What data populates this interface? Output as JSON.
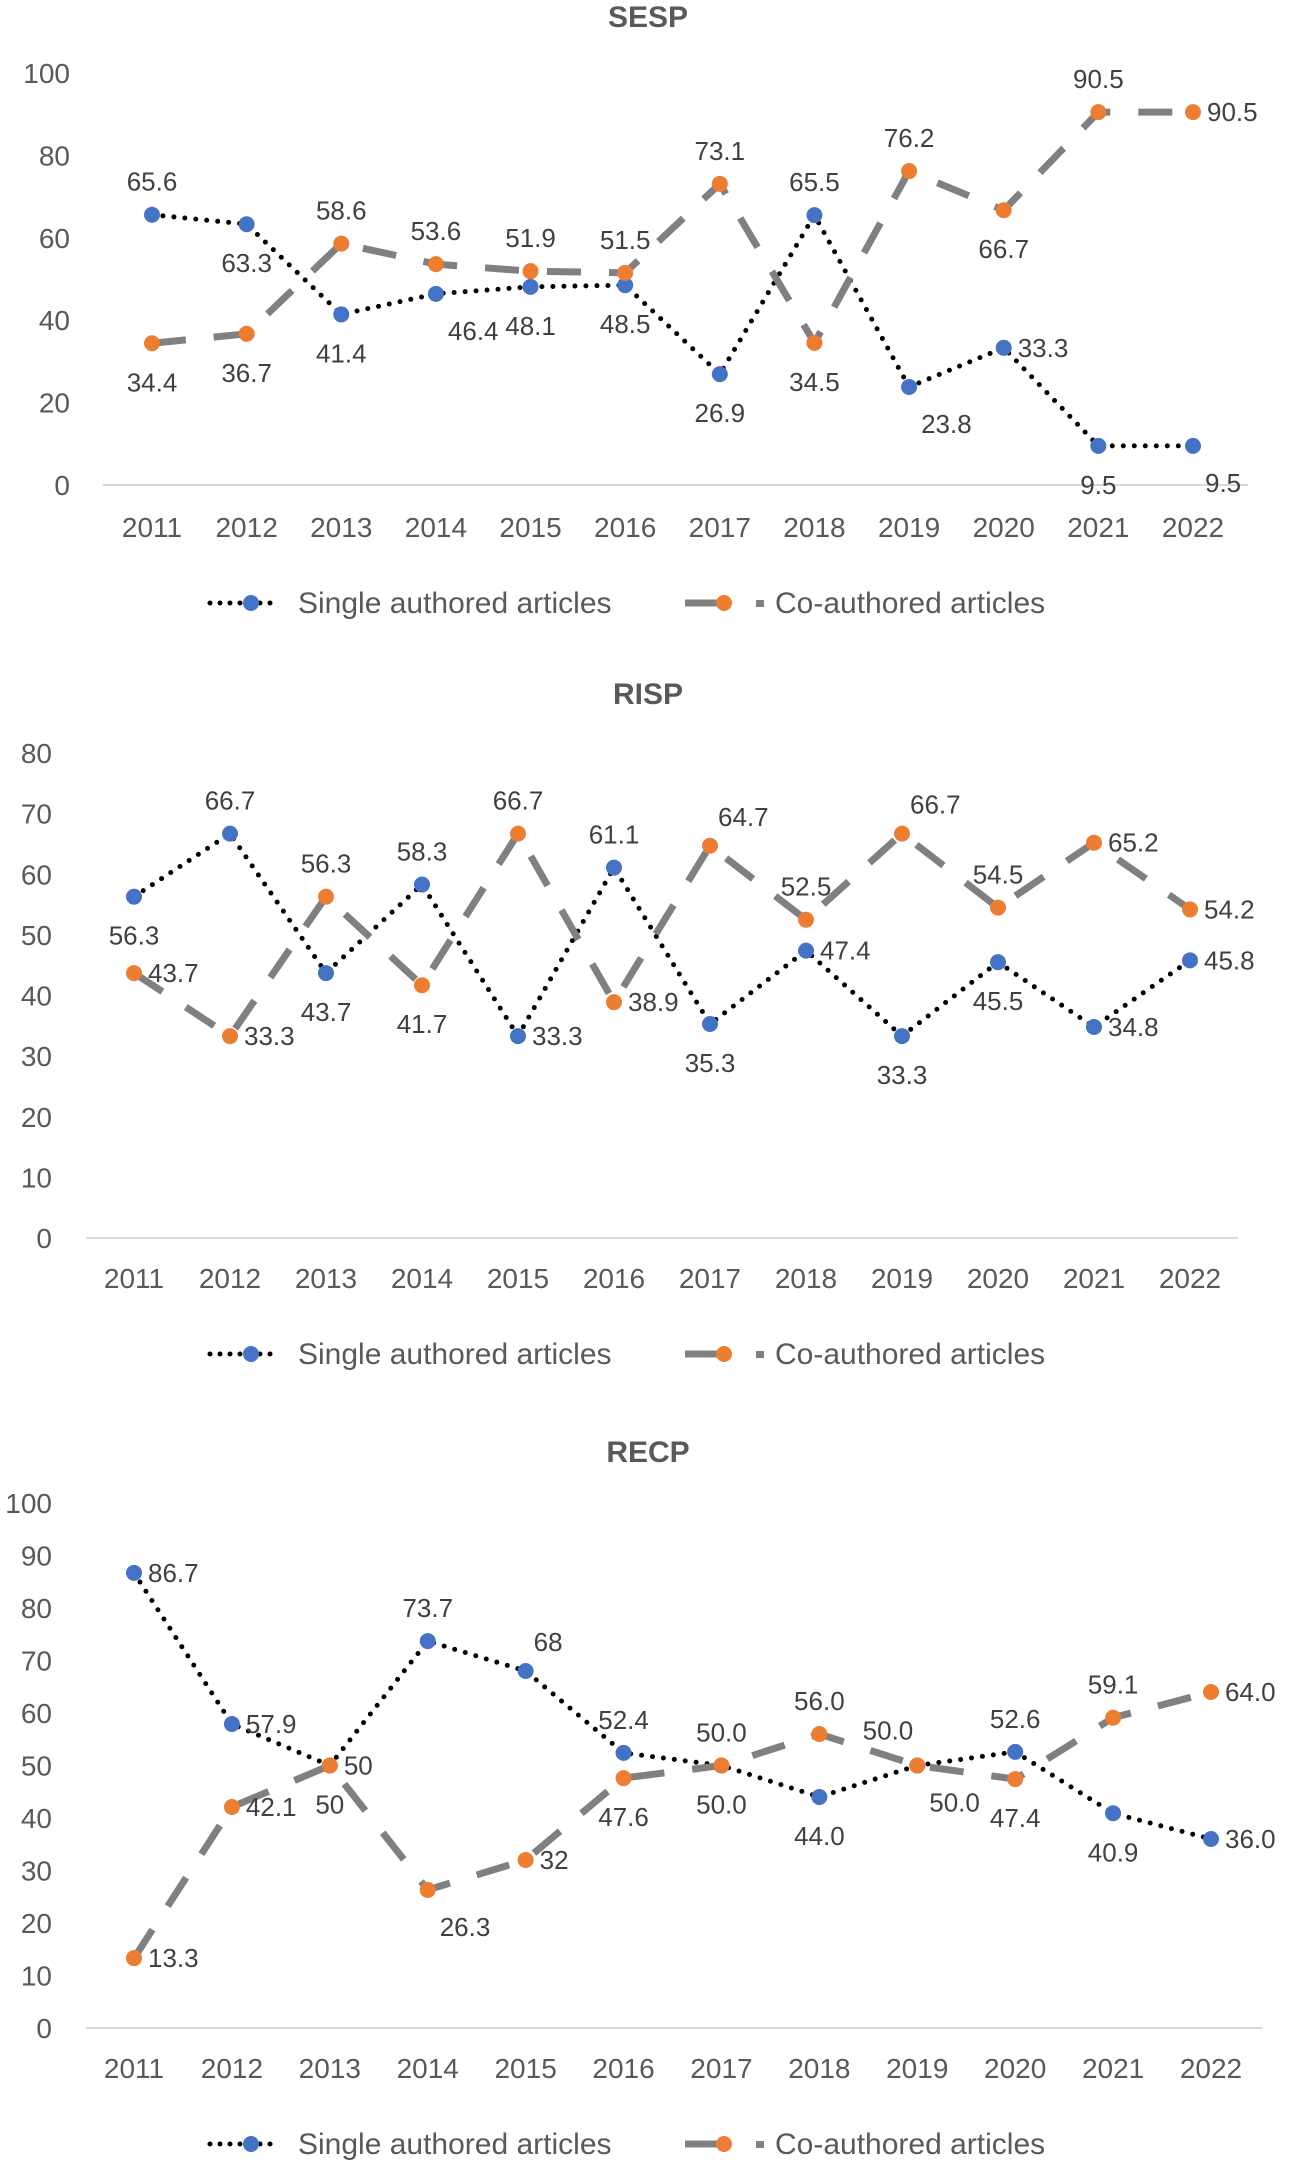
{
  "colors": {
    "single_marker": "#4472C4",
    "co_marker": "#ED7D31",
    "single_line": "#000000",
    "co_line": "#808080"
  },
  "chart_data": [
    {
      "type": "line",
      "title": "SESP",
      "categories": [
        "2011",
        "2012",
        "2013",
        "2014",
        "2015",
        "2016",
        "2017",
        "2018",
        "2019",
        "2020",
        "2021",
        "2022"
      ],
      "ylim": [
        0,
        100
      ],
      "yticks": [
        0,
        20,
        40,
        60,
        80,
        100
      ],
      "grid": false,
      "legend": "bottom",
      "series": [
        {
          "name": "Single authored articles",
          "values": [
            65.6,
            63.3,
            41.4,
            46.4,
            48.1,
            48.5,
            26.9,
            65.5,
            23.8,
            33.3,
            9.5,
            9.5
          ],
          "labels": [
            "65.6",
            "63.3",
            "41.4",
            "46.4",
            "48.1",
            "48.5",
            "26.9",
            "65.5",
            "23.8",
            "33.3",
            "9.5",
            "9.5"
          ]
        },
        {
          "name": "Co-authored articles",
          "values": [
            34.4,
            36.7,
            58.6,
            53.6,
            51.9,
            51.5,
            73.1,
            34.5,
            76.2,
            66.7,
            90.5,
            90.5
          ],
          "labels": [
            "34.4",
            "36.7",
            "58.6",
            "53.6",
            "51.9",
            "51.5",
            "73.1",
            "34.5",
            "76.2",
            "66.7",
            "90.5",
            "90.5"
          ]
        }
      ]
    },
    {
      "type": "line",
      "title": "RISP",
      "categories": [
        "2011",
        "2012",
        "2013",
        "2014",
        "2015",
        "2016",
        "2017",
        "2018",
        "2019",
        "2020",
        "2021",
        "2022"
      ],
      "ylim": [
        0,
        80
      ],
      "yticks": [
        0,
        10,
        20,
        30,
        40,
        50,
        60,
        70,
        80
      ],
      "grid": false,
      "legend": "bottom",
      "series": [
        {
          "name": "Single authored articles",
          "values": [
            56.3,
            66.7,
            43.7,
            58.3,
            33.3,
            61.1,
            35.3,
            47.4,
            33.3,
            45.5,
            34.8,
            45.8
          ],
          "labels": [
            "56.3",
            "66.7",
            "43.7",
            "58.3",
            "33.3",
            "61.1",
            "35.3",
            "47.4",
            "33.3",
            "45.5",
            "34.8",
            "45.8"
          ]
        },
        {
          "name": "Co-authored articles",
          "values": [
            43.7,
            33.3,
            56.3,
            41.7,
            66.7,
            38.9,
            64.7,
            52.5,
            66.7,
            54.5,
            65.2,
            54.2
          ],
          "labels": [
            "43.7",
            "33.3",
            "56.3",
            "41.7",
            "66.7",
            "38.9",
            "64.7",
            "52.5",
            "66.7",
            "54.5",
            "65.2",
            "54.2"
          ]
        }
      ]
    },
    {
      "type": "line",
      "title": "RECP",
      "categories": [
        "2011",
        "2012",
        "2013",
        "2014",
        "2015",
        "2016",
        "2017",
        "2018",
        "2019",
        "2020",
        "2021",
        "2022"
      ],
      "ylim": [
        0,
        100
      ],
      "yticks": [
        0,
        10,
        20,
        30,
        40,
        50,
        60,
        70,
        80,
        90,
        100
      ],
      "grid": false,
      "legend": "bottom",
      "series": [
        {
          "name": "Single authored articles",
          "values": [
            86.7,
            57.9,
            50,
            73.7,
            68,
            52.4,
            50.0,
            44.0,
            50.0,
            52.6,
            40.9,
            36.0
          ],
          "labels": [
            "86.7",
            "57.9",
            "50",
            "73.7",
            "68",
            "52.4",
            "50.0",
            "44.0",
            "50.0",
            "52.6",
            "40.9",
            "36.0"
          ]
        },
        {
          "name": "Co-authored articles",
          "values": [
            13.3,
            42.1,
            50,
            26.3,
            32,
            47.6,
            50.0,
            56.0,
            50.0,
            47.4,
            59.1,
            64.0
          ],
          "labels": [
            "13.3",
            "42.1",
            "50",
            "26.3",
            "32",
            "47.6",
            "50.0",
            "56.0",
            "50.0",
            "47.4",
            "59.1",
            "64.0"
          ]
        }
      ]
    }
  ]
}
